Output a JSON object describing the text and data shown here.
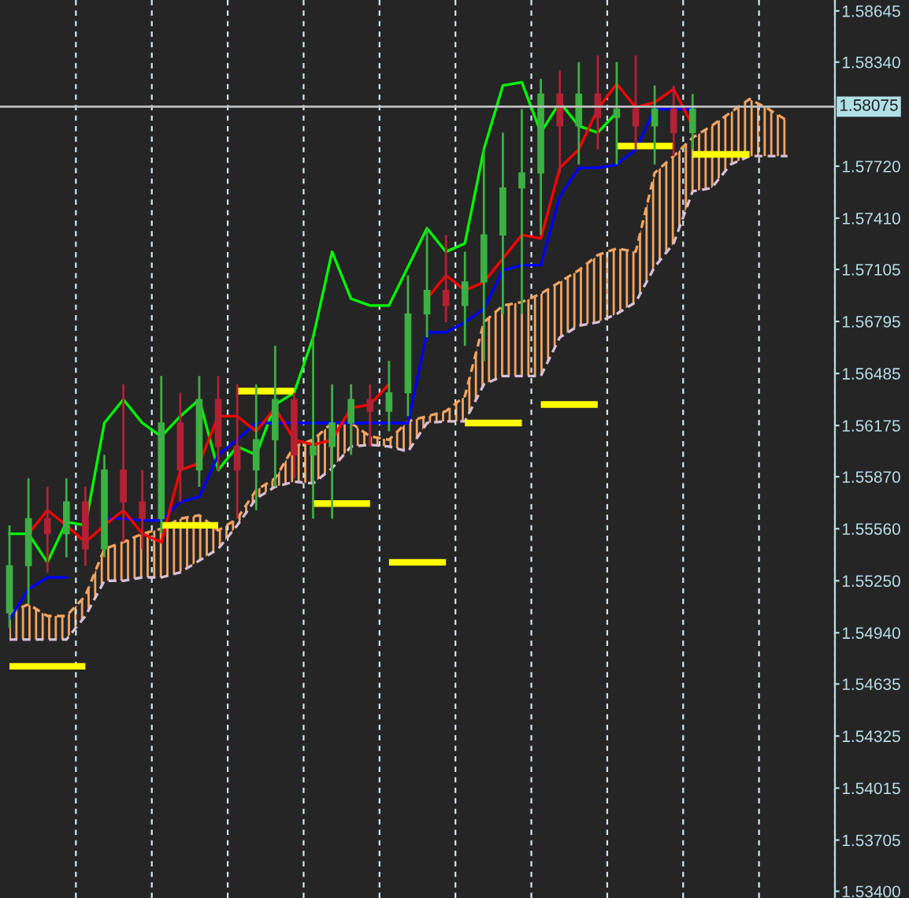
{
  "chart_data": {
    "type": "candlestick",
    "categories": [
      null,
      null,
      null,
      null,
      null,
      null,
      null,
      null,
      null,
      null,
      null,
      null,
      null,
      null,
      null,
      null,
      null,
      null,
      null,
      null,
      null,
      null,
      null,
      null,
      null,
      null,
      null,
      null,
      null,
      null,
      null,
      null,
      null,
      null,
      null,
      null,
      null,
      null,
      null,
      null,
      null,
      null,
      null,
      null
    ],
    "ohlc": [
      [
        1.5506,
        1.5558,
        1.5497,
        1.5534
      ],
      [
        1.5534,
        1.5586,
        1.5511,
        1.5562
      ],
      [
        1.5562,
        1.5581,
        1.553,
        1.5553
      ],
      [
        1.5553,
        1.5586,
        1.5539,
        1.5572
      ],
      [
        1.5572,
        1.5581,
        1.5534,
        1.5544
      ],
      [
        1.5544,
        1.56,
        1.5539,
        1.5591
      ],
      [
        1.5591,
        1.5642,
        1.5548,
        1.5572
      ],
      [
        1.5572,
        1.5591,
        1.5544,
        1.5562
      ],
      [
        1.5562,
        1.5647,
        1.5553,
        1.5619
      ],
      [
        1.5619,
        1.5637,
        1.5572,
        1.5591
      ],
      [
        1.5591,
        1.5647,
        1.5581,
        1.5633
      ],
      [
        1.5633,
        1.5647,
        1.5591,
        1.5605
      ],
      [
        1.5605,
        1.5642,
        1.5562,
        1.5591
      ],
      [
        1.5591,
        1.5642,
        1.5567,
        1.5609
      ],
      [
        1.5609,
        1.5665,
        1.5581,
        1.5633
      ],
      [
        1.5633,
        1.5637,
        1.5586,
        1.56
      ],
      [
        1.56,
        1.567,
        1.5562,
        1.5605
      ],
      [
        1.5605,
        1.5642,
        1.5562,
        1.5619
      ],
      [
        1.5619,
        1.5642,
        1.56,
        1.5633
      ],
      [
        1.5633,
        1.5642,
        1.5605,
        1.5626
      ],
      [
        1.5626,
        1.5656,
        1.5614,
        1.5637
      ],
      [
        1.5637,
        1.5707,
        1.5623,
        1.5684
      ],
      [
        1.5684,
        1.5735,
        1.567,
        1.5698
      ],
      [
        1.5698,
        1.5731,
        1.5679,
        1.5689
      ],
      [
        1.5689,
        1.5721,
        1.5665,
        1.5703
      ],
      [
        1.5703,
        1.5782,
        1.5656,
        1.5731
      ],
      [
        1.5731,
        1.5792,
        1.5684,
        1.5759
      ],
      [
        1.5759,
        1.5806,
        1.5684,
        1.5768
      ],
      [
        1.5768,
        1.5824,
        1.5731,
        1.5815
      ],
      [
        1.5815,
        1.5829,
        1.5768,
        1.5796
      ],
      [
        1.5796,
        1.5834,
        1.5773,
        1.5815
      ],
      [
        1.5815,
        1.5838,
        1.5782,
        1.5801
      ],
      [
        1.5801,
        1.5834,
        1.5773,
        1.5806
      ],
      [
        1.5806,
        1.5838,
        1.5782,
        1.5796
      ],
      [
        1.5796,
        1.582,
        1.5773,
        1.5806
      ],
      [
        1.5806,
        1.582,
        1.5778,
        1.5792
      ],
      [
        1.5792,
        1.5815,
        1.5782,
        1.5806
      ],
      null,
      null,
      null,
      null,
      null,
      null,
      null
    ],
    "colors": [
      "#3cb043",
      "#3cb043",
      "#b22234",
      "#3cb043",
      "#b22234",
      "#3cb043",
      "#b22234",
      "#b22234",
      "#3cb043",
      "#b22234",
      "#3cb043",
      "#b22234",
      "#b22234",
      "#3cb043",
      "#3cb043",
      "#b22234",
      "#3cb043",
      "#3cb043",
      "#3cb043",
      "#b22234",
      "#3cb043",
      "#3cb043",
      "#3cb043",
      "#b22234",
      "#3cb043",
      "#3cb043",
      "#3cb043",
      "#3cb043",
      "#3cb043",
      "#b22234",
      "#3cb043",
      "#b22234",
      "#3cb043",
      "#b22234",
      "#3cb043",
      "#b22234",
      "#3cb043",
      null,
      null,
      null,
      null,
      null,
      null,
      null
    ],
    "series": [
      {
        "type": "line",
        "color": "#f4a460",
        "line_style": "dashed",
        "values": [
          1.5506,
          1.5511,
          1.5504,
          1.5504,
          1.5516,
          1.5544,
          1.5548,
          1.5553,
          1.5556,
          1.5562,
          1.5564,
          1.5555,
          1.5562,
          1.5579,
          1.5586,
          1.5605,
          1.5609,
          1.5619,
          1.5619,
          1.5611,
          1.5609,
          1.562,
          1.5623,
          1.5626,
          1.5635,
          1.5679,
          1.5689,
          1.5691,
          1.5696,
          1.5703,
          1.571,
          1.5719,
          1.5723,
          1.5721,
          1.5768,
          1.5778,
          1.5789,
          1.5796,
          1.5804,
          1.5812,
          1.5806,
          1.5799,
          null,
          null
        ]
      },
      {
        "type": "line",
        "color": "#d8bfd8",
        "line_style": "dashed",
        "values": [
          1.549,
          1.549,
          1.549,
          1.549,
          1.5504,
          1.5525,
          1.5525,
          1.5527,
          1.5527,
          1.553,
          1.5537,
          1.5544,
          1.5558,
          1.5574,
          1.5581,
          1.5584,
          1.5583,
          1.5592,
          1.5605,
          1.5606,
          1.5605,
          1.5602,
          1.5619,
          1.562,
          1.562,
          1.5642,
          1.5647,
          1.5647,
          1.5647,
          1.567,
          1.5677,
          1.5679,
          1.5684,
          1.5691,
          1.5712,
          1.5726,
          1.5757,
          1.5759,
          1.5773,
          1.5778,
          1.5778,
          1.5778,
          null,
          null
        ]
      },
      {
        "type": "line",
        "color": "#00ff00",
        "values": [
          1.5553,
          1.5553,
          1.5536,
          1.556,
          1.5558,
          1.5619,
          1.5633,
          1.5619,
          1.5611,
          1.5623,
          1.5633,
          1.5591,
          1.5605,
          1.56,
          1.563,
          1.5637,
          1.567,
          1.5721,
          1.5693,
          1.5689,
          1.5689,
          1.5712,
          1.5735,
          1.5721,
          1.5726,
          1.5782,
          1.582,
          1.5822,
          1.5792,
          1.581,
          1.5796,
          1.5792,
          1.5804,
          null,
          null,
          null,
          null,
          null,
          null,
          null,
          null,
          null,
          null,
          null
        ]
      },
      {
        "type": "line",
        "color": "#0000ff",
        "values": [
          1.5502,
          1.552,
          1.5527,
          1.5527,
          null,
          1.5562,
          1.5562,
          1.5561,
          1.5561,
          1.5572,
          1.5575,
          1.56,
          1.5609,
          1.5619,
          1.5619,
          1.5619,
          1.5619,
          1.5619,
          1.5619,
          1.5619,
          1.5619,
          1.5619,
          1.5673,
          1.5673,
          1.5679,
          1.5687,
          1.571,
          1.5713,
          1.5713,
          1.5754,
          1.5771,
          1.5771,
          1.5773,
          1.5782,
          1.5806,
          1.5806,
          1.5806,
          null,
          null,
          null,
          null,
          null,
          null,
          null
        ]
      },
      {
        "type": "line",
        "color": "#ff0000",
        "values": [
          null,
          1.5553,
          1.5567,
          1.5558,
          1.5548,
          1.5558,
          1.5567,
          1.5553,
          1.5548,
          1.5591,
          1.5595,
          1.5623,
          1.5623,
          1.5614,
          1.5628,
          1.5609,
          1.5606,
          1.5609,
          1.5628,
          1.563,
          1.5642,
          null,
          1.5693,
          1.5707,
          1.5698,
          1.5703,
          1.5717,
          1.5731,
          1.5729,
          1.5771,
          1.5782,
          1.5806,
          1.5821,
          1.5807,
          1.581,
          1.5818,
          1.5796,
          null,
          null,
          null,
          null,
          null,
          null,
          null
        ]
      },
      {
        "type": "line",
        "color": "#ffff00",
        "values": [
          1.5474,
          1.5474,
          1.5474,
          1.5474,
          1.5474,
          null,
          null,
          null,
          null,
          null,
          null,
          null,
          null,
          null,
          null,
          null,
          null,
          null,
          null,
          null,
          null,
          null,
          null,
          null,
          null,
          null,
          null,
          null,
          null,
          null,
          null,
          null,
          null,
          null,
          null,
          null,
          null,
          null,
          null,
          null,
          null,
          null,
          null,
          null
        ]
      },
      {
        "type": "line",
        "color": "#ffff00",
        "values": [
          null,
          null,
          null,
          null,
          null,
          null,
          null,
          null,
          1.5558,
          1.5558,
          1.5558,
          1.5558,
          null,
          null,
          null,
          null,
          null,
          null,
          null,
          null,
          null,
          null,
          null,
          null,
          null,
          null,
          null,
          null,
          null,
          null,
          null,
          null,
          null,
          null,
          null,
          null,
          null,
          null,
          null,
          null,
          null,
          null,
          null,
          null
        ]
      },
      {
        "type": "line",
        "color": "#ffff00",
        "values": [
          null,
          null,
          null,
          null,
          null,
          null,
          null,
          null,
          null,
          null,
          null,
          null,
          1.5638,
          1.5638,
          1.5638,
          1.5638,
          null,
          null,
          null,
          null,
          null,
          null,
          null,
          null,
          null,
          null,
          null,
          null,
          null,
          null,
          null,
          null,
          null,
          null,
          null,
          null,
          null,
          null,
          null,
          null,
          null,
          null,
          null,
          null
        ]
      },
      {
        "type": "line",
        "color": "#ffff00",
        "values": [
          null,
          null,
          null,
          null,
          null,
          null,
          null,
          null,
          null,
          null,
          null,
          null,
          null,
          null,
          null,
          null,
          1.5571,
          1.5571,
          1.5571,
          1.5571,
          null,
          null,
          null,
          null,
          null,
          null,
          null,
          null,
          null,
          null,
          null,
          null,
          null,
          null,
          null,
          null,
          null,
          null,
          null,
          null,
          null,
          null,
          null,
          null
        ]
      },
      {
        "type": "line",
        "color": "#ffff00",
        "values": [
          null,
          null,
          null,
          null,
          null,
          null,
          null,
          null,
          null,
          null,
          null,
          null,
          null,
          null,
          null,
          null,
          null,
          null,
          null,
          null,
          1.5536,
          1.5536,
          1.5536,
          1.5536,
          null,
          null,
          null,
          null,
          null,
          null,
          null,
          null,
          null,
          null,
          null,
          null,
          null,
          null,
          null,
          null,
          null,
          null,
          null,
          null
        ]
      },
      {
        "type": "line",
        "color": "#ffff00",
        "values": [
          null,
          null,
          null,
          null,
          null,
          null,
          null,
          null,
          null,
          null,
          null,
          null,
          null,
          null,
          null,
          null,
          null,
          null,
          null,
          null,
          null,
          null,
          null,
          null,
          1.5619,
          1.5619,
          1.5619,
          1.5619,
          null,
          null,
          null,
          null,
          null,
          null,
          null,
          null,
          null,
          null,
          null,
          null,
          null,
          null,
          null,
          null
        ]
      },
      {
        "type": "line",
        "color": "#ffff00",
        "values": [
          null,
          null,
          null,
          null,
          null,
          null,
          null,
          null,
          null,
          null,
          null,
          null,
          null,
          null,
          null,
          null,
          null,
          null,
          null,
          null,
          null,
          null,
          null,
          null,
          null,
          null,
          null,
          null,
          1.563,
          1.563,
          1.563,
          1.563,
          null,
          null,
          null,
          null,
          null,
          null,
          null,
          null,
          null,
          null,
          null,
          null
        ]
      },
      {
        "type": "line",
        "color": "#ffff00",
        "values": [
          null,
          null,
          null,
          null,
          null,
          null,
          null,
          null,
          null,
          null,
          null,
          null,
          null,
          null,
          null,
          null,
          null,
          null,
          null,
          null,
          null,
          null,
          null,
          null,
          null,
          null,
          null,
          null,
          null,
          null,
          null,
          null,
          1.5784,
          1.5784,
          1.5784,
          1.5784,
          null,
          null,
          null,
          null,
          null,
          null,
          null,
          null
        ]
      },
      {
        "type": "line",
        "color": "#ffff00",
        "values": [
          null,
          null,
          null,
          null,
          null,
          null,
          null,
          null,
          null,
          null,
          null,
          null,
          null,
          null,
          null,
          null,
          null,
          null,
          null,
          null,
          null,
          null,
          null,
          null,
          null,
          null,
          null,
          null,
          null,
          null,
          null,
          null,
          null,
          null,
          null,
          null,
          1.5779,
          1.5779,
          1.5779,
          1.5779,
          null,
          null,
          null,
          null
        ]
      }
    ],
    "ref_lines": [
      {
        "axis": "y",
        "value": 1.58075,
        "label": "1.58075",
        "color": "#c0c0c0"
      }
    ],
    "ylim": [
      1.5336,
      1.5871
    ],
    "yticks": [
      1.58645,
      {
        "value": 1.5834,
        "label": "1.58340"
      },
      {
        "value": 1.5772,
        "label": "1.57720"
      },
      {
        "value": 1.5741,
        "label": "1.57410"
      },
      1.57105,
      1.56795,
      1.56485,
      1.56175,
      {
        "value": 1.5587,
        "label": "1.55870"
      },
      {
        "value": 1.5556,
        "label": "1.55560"
      },
      {
        "value": 1.5525,
        "label": "1.55250"
      },
      {
        "value": 1.5494,
        "label": "1.54940"
      },
      1.54635,
      1.54325,
      1.54015,
      1.53705,
      {
        "value": 1.534,
        "label": "1.53400"
      }
    ],
    "grid": "x",
    "tick_labels": "y"
  }
}
